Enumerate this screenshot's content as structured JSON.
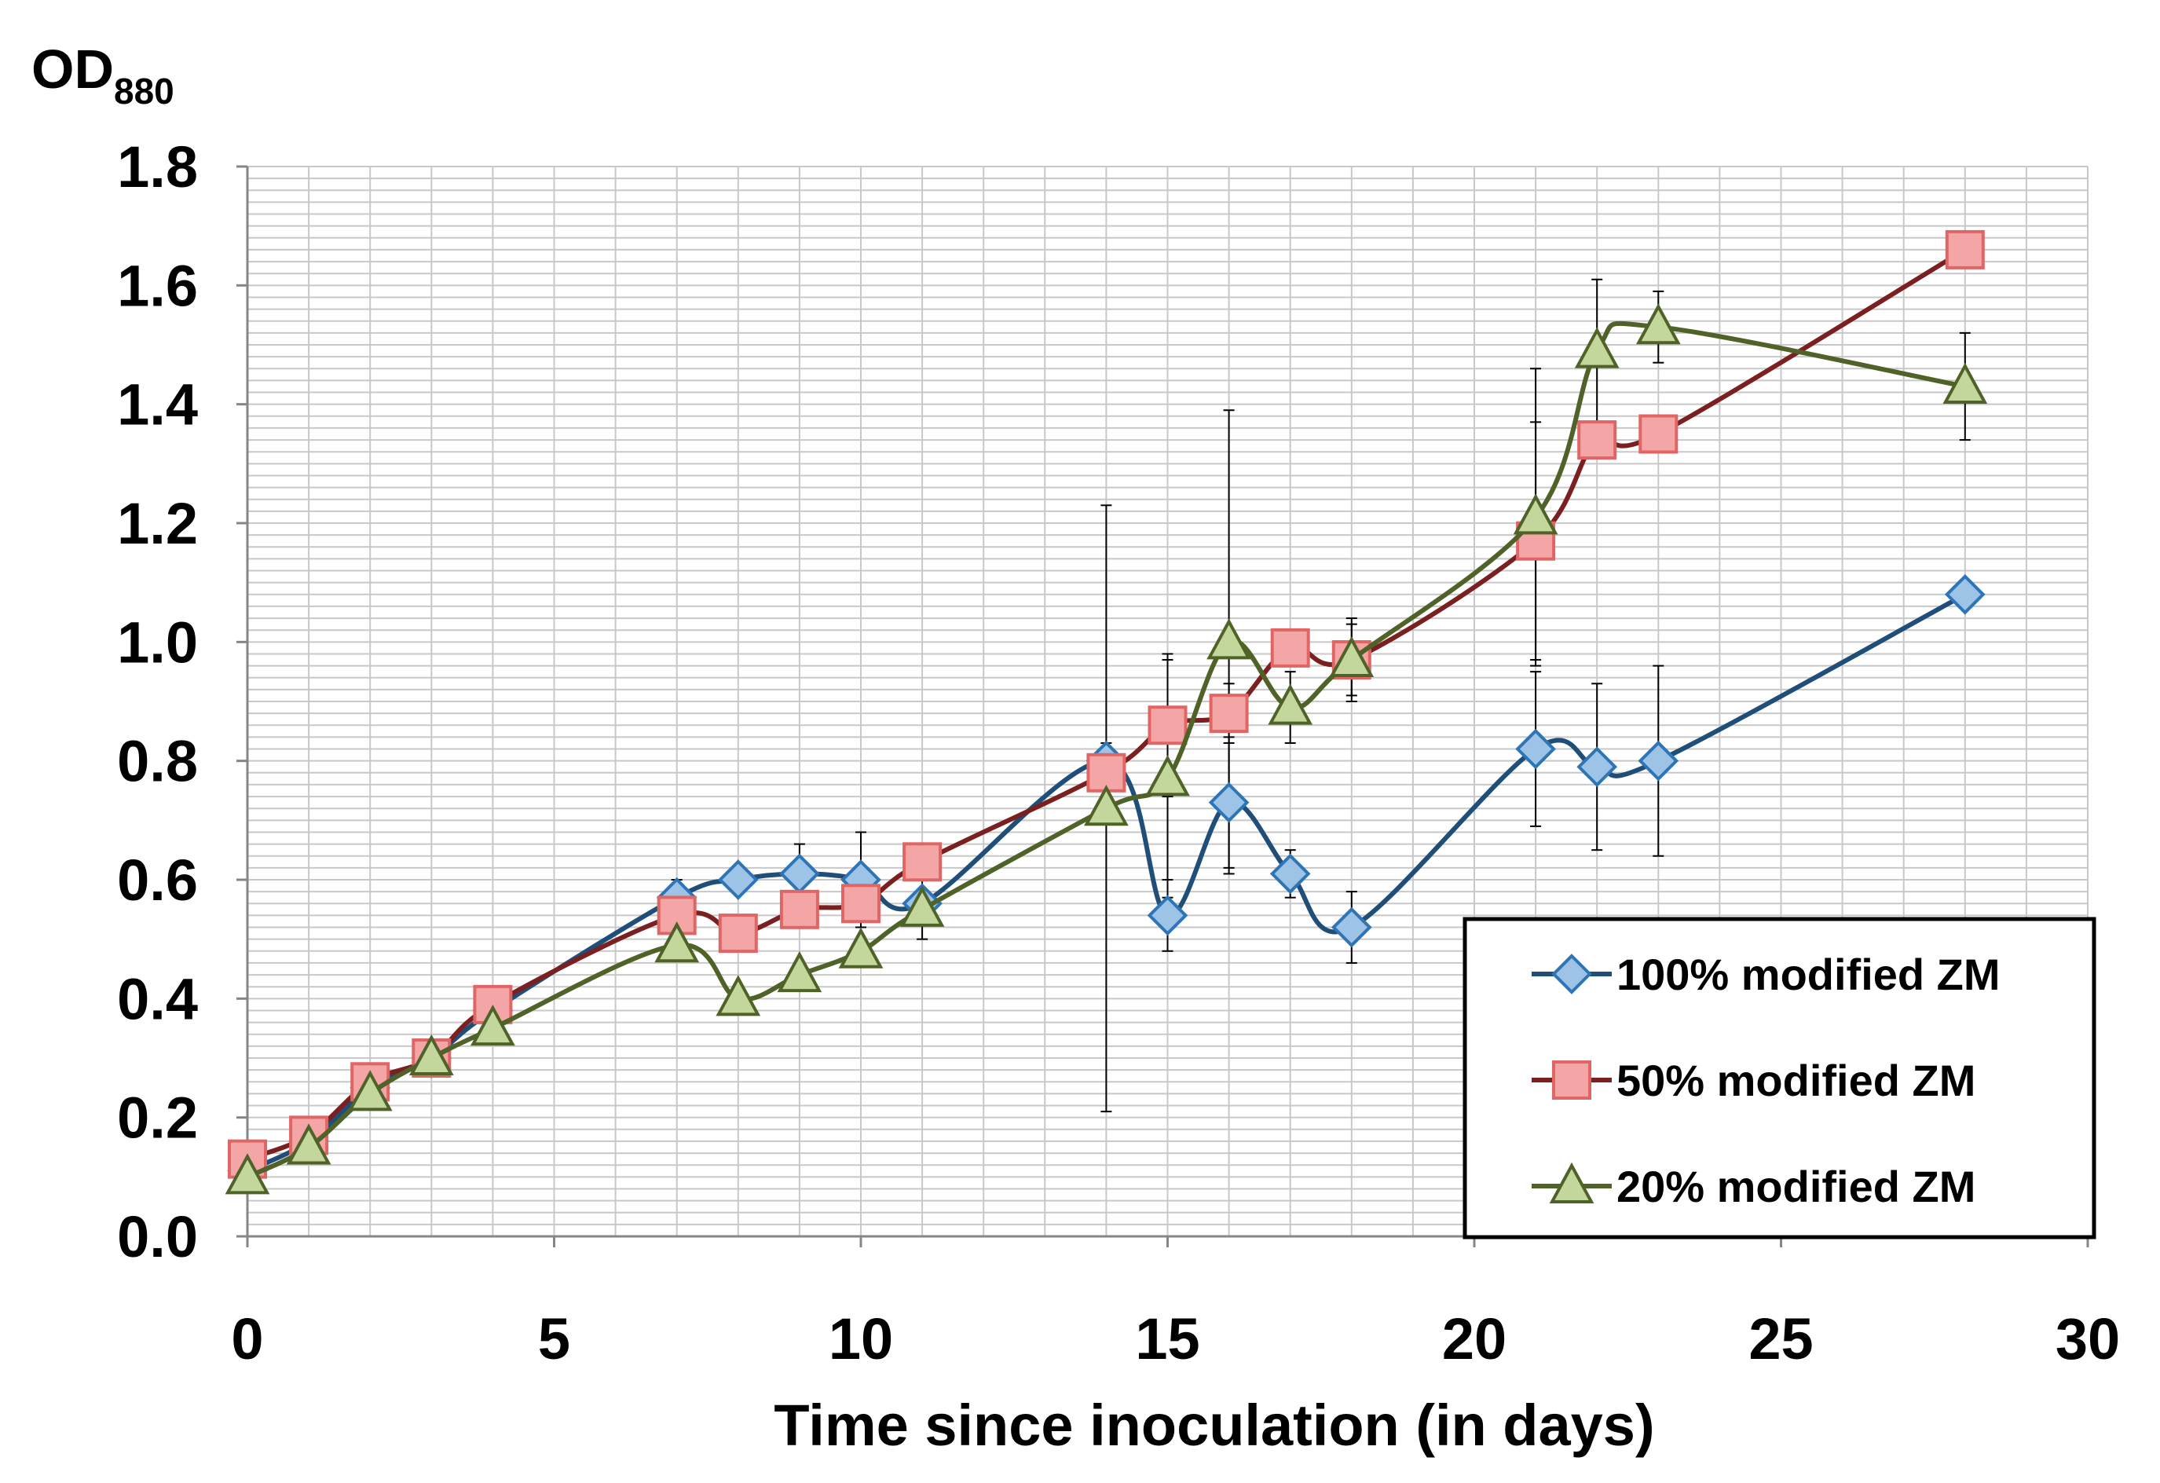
{
  "chart_data": {
    "type": "line",
    "title": "",
    "xlabel": "Time since inoculation (in days)",
    "ylabel_main": "OD",
    "ylabel_sub": "880",
    "xlim": [
      0,
      30
    ],
    "ylim": [
      0.0,
      1.8
    ],
    "xticks": [
      0,
      5,
      10,
      15,
      20,
      25,
      30
    ],
    "xtick_labels": [
      "0",
      "5",
      "10",
      "15",
      "20",
      "25",
      "30"
    ],
    "yticks": [
      0.0,
      0.2,
      0.4,
      0.6,
      0.8,
      1.0,
      1.2,
      1.4,
      1.6,
      1.8
    ],
    "ytick_labels": [
      "0.0",
      "0.2",
      "0.4",
      "0.6",
      "0.8",
      "1.0",
      "1.2",
      "1.4",
      "1.6",
      "1.8"
    ],
    "grid": true,
    "legend_position": "bottom-right",
    "x": [
      0,
      1,
      2,
      3,
      4,
      7,
      8,
      9,
      10,
      11,
      14,
      15,
      16,
      17,
      18,
      21,
      22,
      23,
      28
    ],
    "series": [
      {
        "name": "100% modified ZM",
        "marker": "diamond",
        "line_color": "#1F4E79",
        "marker_fill": "#9DC3E6",
        "marker_stroke": "#2E75B6",
        "values": [
          0.11,
          0.16,
          0.25,
          0.3,
          0.38,
          0.57,
          0.6,
          0.61,
          0.6,
          0.56,
          0.8,
          0.54,
          0.73,
          0.61,
          0.52,
          0.82,
          0.79,
          0.8,
          1.08
        ],
        "errors": [
          0.01,
          0.01,
          0.01,
          0.01,
          0.01,
          0.03,
          0.02,
          0.05,
          0.08,
          0.02,
          0.03,
          0.06,
          0.11,
          0.04,
          0.06,
          0.13,
          0.14,
          0.16,
          0.01
        ]
      },
      {
        "name": "50% modified ZM",
        "marker": "square",
        "line_color": "#7B2020",
        "marker_fill": "#F4A6A6",
        "marker_stroke": "#E06666",
        "values": [
          0.13,
          0.17,
          0.26,
          0.3,
          0.39,
          0.54,
          0.51,
          0.55,
          0.56,
          0.63,
          0.78,
          0.86,
          0.88,
          0.99,
          0.97,
          1.17,
          1.34,
          1.35,
          1.66
        ],
        "errors": [
          0.01,
          0.01,
          0.01,
          0.01,
          0.01,
          0.01,
          0.03,
          0.02,
          0.02,
          0.01,
          0.03,
          0.12,
          0.05,
          0.02,
          0.06,
          0.2,
          0.01,
          0.01,
          0.01
        ]
      },
      {
        "name": "20% modified ZM",
        "marker": "triangle",
        "line_color": "#4F6228",
        "marker_fill": "#C3D69B",
        "marker_stroke": "#4F6228",
        "values": [
          0.1,
          0.15,
          0.24,
          0.3,
          0.35,
          0.49,
          0.4,
          0.44,
          0.48,
          0.55,
          0.72,
          0.77,
          1.0,
          0.89,
          0.97,
          1.21,
          1.49,
          1.53,
          1.43
        ],
        "errors": [
          0.01,
          0.01,
          0.01,
          0.01,
          0.01,
          0.01,
          0.01,
          0.01,
          0.01,
          0.05,
          0.51,
          0.2,
          0.39,
          0.06,
          0.07,
          0.25,
          0.12,
          0.06,
          0.09
        ]
      }
    ]
  }
}
